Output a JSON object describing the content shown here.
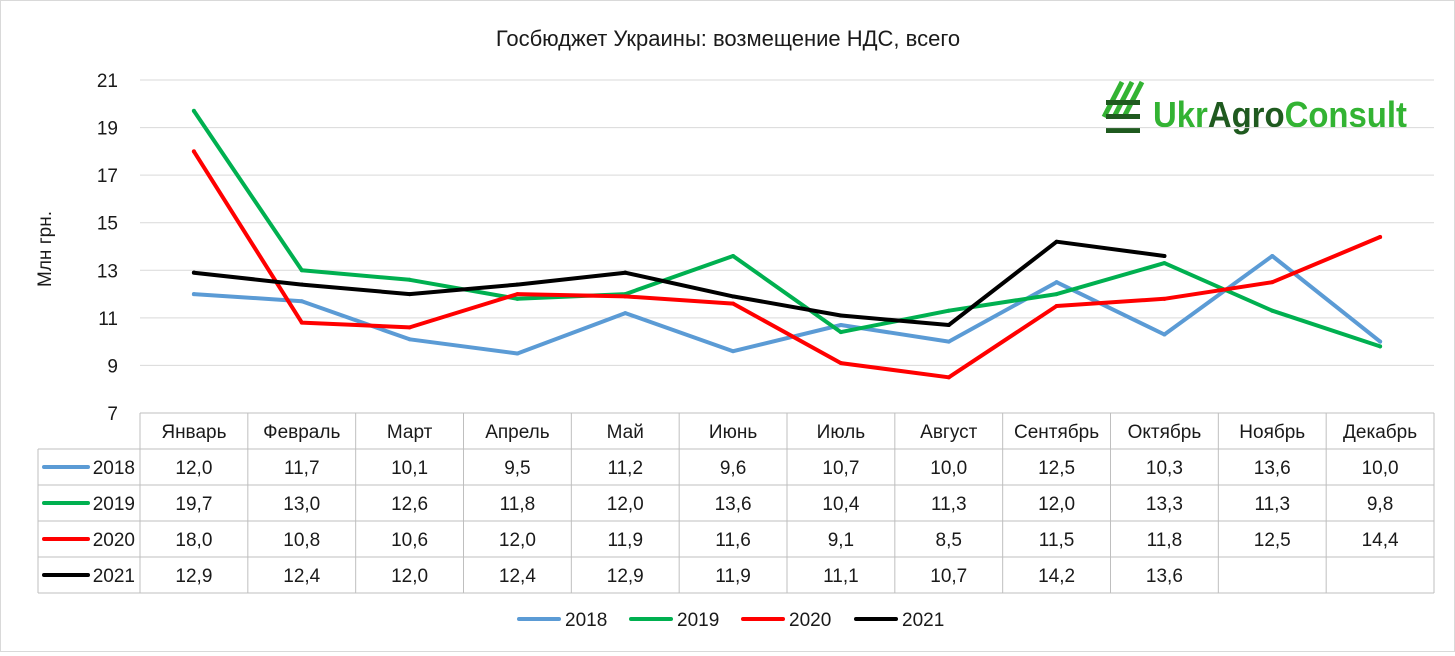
{
  "chart_data": {
    "type": "line",
    "title": "Госбюджет Украины: возмещение НДС, всего",
    "ylabel": "Млн грн.",
    "xlabel": "",
    "ylim": [
      7,
      21
    ],
    "yticks": [
      7,
      9,
      11,
      13,
      15,
      17,
      19,
      21
    ],
    "grid": "horizontal",
    "legend_position": "bottom",
    "data_table": true,
    "categories": [
      "Январь",
      "Февраль",
      "Март",
      "Апрель",
      "Май",
      "Июнь",
      "Июль",
      "Август",
      "Сентябрь",
      "Октябрь",
      "Ноябрь",
      "Декабрь"
    ],
    "series": [
      {
        "name": "2018",
        "color": "#5b9bd5",
        "values": [
          12.0,
          11.7,
          10.1,
          9.5,
          11.2,
          9.6,
          10.7,
          10.0,
          12.5,
          10.3,
          13.6,
          10.0
        ],
        "labels": [
          "12,0",
          "11,7",
          "10,1",
          "9,5",
          "11,2",
          "9,6",
          "10,7",
          "10,0",
          "12,5",
          "10,3",
          "13,6",
          "10,0"
        ]
      },
      {
        "name": "2019",
        "color": "#00b050",
        "values": [
          19.7,
          13.0,
          12.6,
          11.8,
          12.0,
          13.6,
          10.4,
          11.3,
          12.0,
          13.3,
          11.3,
          9.8
        ],
        "labels": [
          "19,7",
          "13,0",
          "12,6",
          "11,8",
          "12,0",
          "13,6",
          "10,4",
          "11,3",
          "12,0",
          "13,3",
          "11,3",
          "9,8"
        ]
      },
      {
        "name": "2020",
        "color": "#ff0000",
        "values": [
          18.0,
          10.8,
          10.6,
          12.0,
          11.9,
          11.6,
          9.1,
          8.5,
          11.5,
          11.8,
          12.5,
          14.4
        ],
        "labels": [
          "18,0",
          "10,8",
          "10,6",
          "12,0",
          "11,9",
          "11,6",
          "9,1",
          "8,5",
          "11,5",
          "11,8",
          "12,5",
          "14,4"
        ]
      },
      {
        "name": "2021",
        "color": "#000000",
        "values": [
          12.9,
          12.4,
          12.0,
          12.4,
          12.9,
          11.9,
          11.1,
          10.7,
          14.2,
          13.6,
          null,
          null
        ],
        "labels": [
          "12,9",
          "12,4",
          "12,0",
          "12,4",
          "12,9",
          "11,9",
          "11,1",
          "10,7",
          "14,2",
          "13,6",
          "",
          ""
        ]
      }
    ]
  },
  "logo": {
    "text": "UkrAgroConsult",
    "parts": [
      "Ukr",
      "Agro",
      "Consult"
    ],
    "green": "#33b333",
    "dark": "#1f5a1f"
  }
}
